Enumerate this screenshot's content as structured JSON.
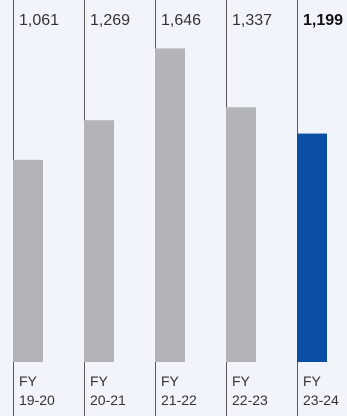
{
  "chart_data": {
    "type": "bar",
    "categories": [
      {
        "line1": "FY",
        "line2": "19-20"
      },
      {
        "line1": "FY",
        "line2": "20-21"
      },
      {
        "line1": "FY",
        "line2": "21-22"
      },
      {
        "line1": "FY",
        "line2": "22-23"
      },
      {
        "line1": "FY",
        "line2": "23-24"
      }
    ],
    "values": [
      1061,
      1269,
      1646,
      1337,
      1199
    ],
    "value_labels": [
      "1,061",
      "1,269",
      "1,646",
      "1,337",
      "1,199"
    ],
    "highlighted_index": 4,
    "ylim": [
      0,
      1900
    ],
    "grid": false,
    "legend": "none"
  },
  "colors": {
    "background": "#f1f5fb",
    "bar_default": "#b3b4b7",
    "bar_highlight": "#0a4ea6",
    "separator": "#5a5a5a",
    "text": "#333333"
  }
}
